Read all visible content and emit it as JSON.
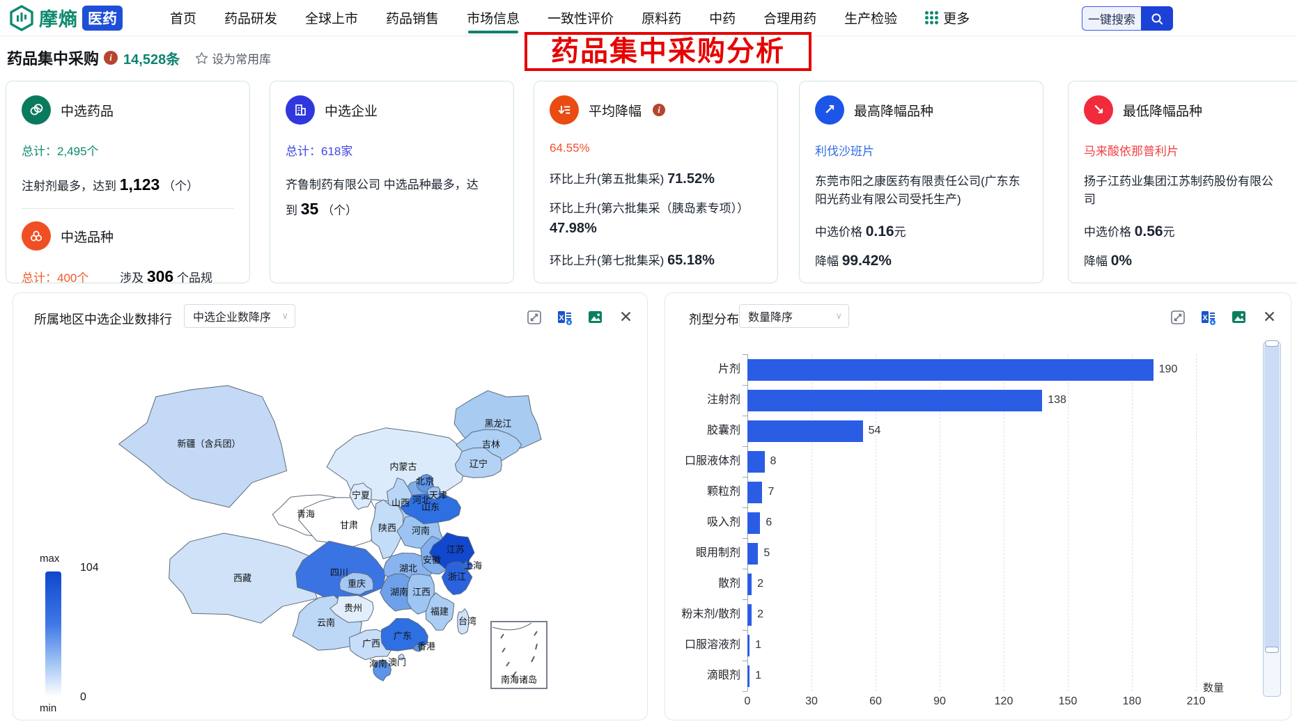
{
  "navbar": {
    "brand": {
      "name": "摩熵",
      "suffix": "医药"
    },
    "items": [
      {
        "label": "首页"
      },
      {
        "label": "药品研发"
      },
      {
        "label": "全球上市"
      },
      {
        "label": "药品销售"
      },
      {
        "label": "市场信息",
        "active": true
      },
      {
        "label": "一致性评价"
      },
      {
        "label": "原料药"
      },
      {
        "label": "中药"
      },
      {
        "label": "合理用药"
      },
      {
        "label": "生产检验"
      }
    ],
    "more_label": "更多",
    "search": {
      "text": "一键搜索"
    }
  },
  "page_header": {
    "title": "药品集中采购",
    "count": "14,528条",
    "favorite_label": "设为常用库"
  },
  "annotation": {
    "text": "药品集中采购分析"
  },
  "cards": {
    "drugs": {
      "title": "中选药品",
      "total_label": "总计：",
      "total_value": "2,495个",
      "desc_prefix": "注射剂最多，达到",
      "desc_value": "1,123",
      "desc_suffix": "（个）"
    },
    "varieties": {
      "title": "中选品种",
      "total_label": "总计：",
      "total_value": "400个",
      "involve_prefix": "涉及",
      "involve_value": "306",
      "involve_suffix": "个品规"
    },
    "companies": {
      "title": "中选企业",
      "total_label": "总计：",
      "total_value": "618家",
      "desc_prefix": "齐鲁制药有限公司 中选品种最多，达到",
      "desc_value": "35",
      "desc_suffix": "（个）"
    },
    "avg_reduction": {
      "title": "平均降幅",
      "value": "64.55%",
      "rows": [
        {
          "label": "环比上升(第五批集采)",
          "value": "71.52%"
        },
        {
          "label": "环比上升(第六批集采（胰岛素专项））",
          "value": "47.98%"
        },
        {
          "label": "环比上升(第七批集采)",
          "value": "65.18%"
        }
      ]
    },
    "max_reduction": {
      "title": "最高降幅品种",
      "drug": "利伐沙班片",
      "company": "东莞市阳之康医药有限责任公司(广东东阳光药业有限公司受托生产)",
      "price_label": "中选价格",
      "price_value": "0.16",
      "price_unit": "元",
      "reduction_label": "降幅",
      "reduction_value": "99.42%"
    },
    "min_reduction": {
      "title": "最低降幅品种",
      "drug": "马来酸依那普利片",
      "company": "扬子江药业集团江苏制药股份有限公司",
      "price_label": "中选价格",
      "price_value": "0.56",
      "price_unit": "元",
      "reduction_label": "降幅",
      "reduction_value": "0%"
    }
  },
  "map_panel": {
    "title": "所属地区中选企业数排行",
    "sort_value": "中选企业数降序",
    "toolbar_icons": [
      "expand-icon",
      "excel-export-icon",
      "image-export-icon",
      "close-icon"
    ],
    "legend": {
      "max_label": "max",
      "max_value": "104",
      "min_value": "0",
      "min_label": "min"
    },
    "inset_label": "南海诸岛"
  },
  "bar_panel": {
    "title": "剂型分布",
    "sort_value": "数量降序",
    "toolbar_icons": [
      "expand-icon",
      "excel-export-icon",
      "image-export-icon",
      "close-icon"
    ]
  },
  "chart_data": [
    {
      "type": "heatmap",
      "subtype": "china-choropleth-map",
      "title": "所属地区中选企业数排行",
      "value_range": [
        0,
        104
      ],
      "legend": {
        "max": 104,
        "min": 0
      },
      "provinces": [
        {
          "name": "新疆",
          "label": "新疆（含兵团）",
          "fill": "#c3d9f5"
        },
        {
          "name": "西藏",
          "fill": "#cfe2f8"
        },
        {
          "name": "内蒙古",
          "fill": "#dcebfb"
        },
        {
          "name": "青海",
          "fill": "#ffffff"
        },
        {
          "name": "甘肃",
          "fill": "#ffffff"
        },
        {
          "name": "四川",
          "fill": "#3a74e3"
        },
        {
          "name": "云南",
          "fill": "#bcd8f6"
        },
        {
          "name": "黑龙江",
          "fill": "#a8cbf2"
        },
        {
          "name": "吉林",
          "fill": "#aed0f4"
        },
        {
          "name": "辽宁",
          "fill": "#b4d2f4"
        },
        {
          "name": "河北",
          "fill": "#7fadec"
        },
        {
          "name": "山西",
          "fill": "#b9d6f6"
        },
        {
          "name": "陕西",
          "fill": "#c3dcf7"
        },
        {
          "name": "湖北",
          "fill": "#8ab4ef"
        },
        {
          "name": "湖南",
          "fill": "#6ea1ea"
        },
        {
          "name": "河南",
          "fill": "#9cc4f2"
        },
        {
          "name": "山东",
          "fill": "#2e6fe2"
        },
        {
          "name": "江西",
          "fill": "#9fc5f2"
        },
        {
          "name": "贵州",
          "fill": "#e2eefb"
        },
        {
          "name": "广西",
          "fill": "#c7ddf8"
        },
        {
          "name": "广东",
          "fill": "#2e6fe2"
        },
        {
          "name": "福建",
          "fill": "#aacdf3"
        },
        {
          "name": "安徽",
          "fill": "#82b0ee"
        },
        {
          "name": "江苏",
          "fill": "#1148cd",
          "value": 104
        },
        {
          "name": "浙江",
          "fill": "#2b62dd"
        },
        {
          "name": "重庆",
          "fill": "#a5c8f3"
        },
        {
          "name": "宁夏",
          "fill": "#dcebfb"
        },
        {
          "name": "北京",
          "fill": "#5f97e9"
        },
        {
          "name": "天津",
          "fill": "#9cc3f1"
        },
        {
          "name": "上海",
          "fill": "#3468de"
        },
        {
          "name": "台湾",
          "fill": "#cfe3f9"
        },
        {
          "name": "海南",
          "fill": "#5b94e8"
        },
        {
          "name": "香港",
          "fill": "#5b94e8"
        },
        {
          "name": "澳门",
          "fill": "#c7ddf8"
        }
      ]
    },
    {
      "type": "bar",
      "orientation": "horizontal",
      "title": "剂型分布",
      "categories": [
        "片剂",
        "注射剂",
        "胶囊剂",
        "口服液体剂",
        "颗粒剂",
        "吸入剂",
        "眼用制剂",
        "散剂",
        "粉末剂/散剂",
        "口服溶液剂",
        "滴眼剂"
      ],
      "values": [
        190,
        138,
        54,
        8,
        7,
        6,
        5,
        2,
        2,
        1,
        1
      ],
      "xlabel": "数量",
      "xlim": [
        0,
        210
      ],
      "xticks": [
        0,
        30,
        60,
        90,
        120,
        150,
        180,
        210
      ],
      "bar_color": "#2b5de4",
      "grid": true
    }
  ]
}
